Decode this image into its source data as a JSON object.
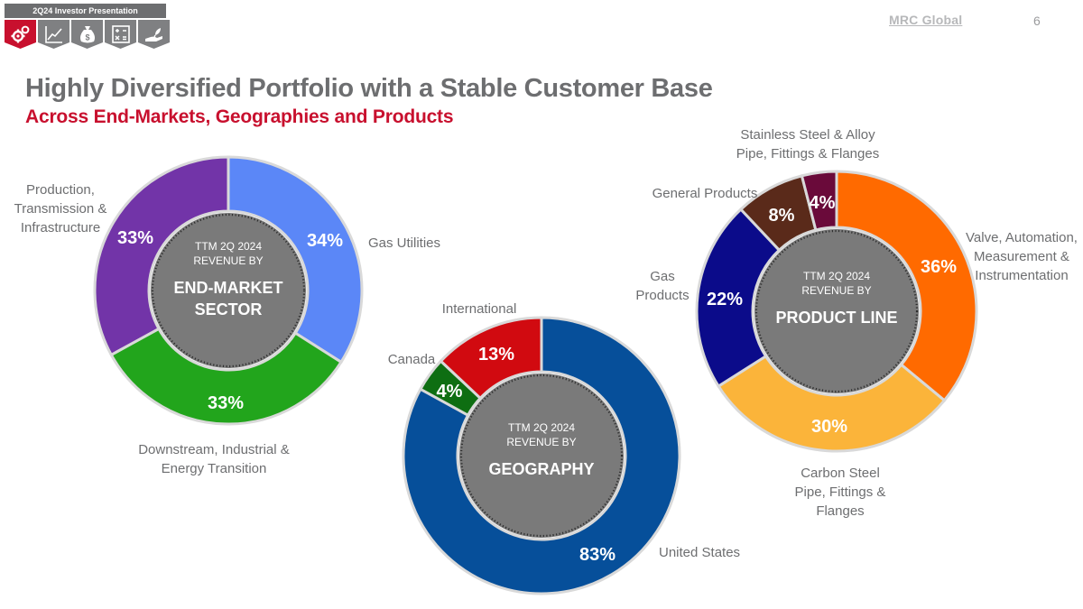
{
  "header": {
    "presentation_label": "2Q24  Investor Presentation",
    "brand": "MRC Global",
    "page_number": "6",
    "nav_icons": [
      "gears-icon",
      "growth-chart-icon",
      "money-bag-icon",
      "calculator-icon",
      "hand-plant-icon"
    ]
  },
  "title": "Highly Diversified Portfolio with a Stable Customer Base",
  "subtitle": "Across End-Markets, Geographies and Products",
  "colors": {
    "accent_red": "#c8102e",
    "title_gray": "#6d6e70",
    "center_gray": "#7a7a7a"
  },
  "chart_data": [
    {
      "type": "pie",
      "title": "TTM 2Q 2024 REVENUE BY END-MARKET SECTOR",
      "center_lines": [
        "TTM 2Q 2024",
        "REVENUE BY"
      ],
      "center_emphasis": [
        "END-MARKET",
        "SECTOR"
      ],
      "slices": [
        {
          "label": [
            "Gas Utilities"
          ],
          "value": 34,
          "display": "34%",
          "color": "#5b87f7"
        },
        {
          "label": [
            "Downstream, Industrial &",
            "Energy Transition"
          ],
          "value": 33,
          "display": "33%",
          "color": "#22a51c"
        },
        {
          "label": [
            "Production,",
            "Transmission &",
            "Infrastructure"
          ],
          "value": 33,
          "display": "33%",
          "color": "#7234a8"
        }
      ]
    },
    {
      "type": "pie",
      "title": "TTM 2Q 2024 REVENUE BY GEOGRAPHY",
      "center_lines": [
        "TTM 2Q 2024",
        "REVENUE BY"
      ],
      "center_emphasis": [
        "GEOGRAPHY"
      ],
      "slices": [
        {
          "label": [
            "United States"
          ],
          "value": 83,
          "display": "83%",
          "color": "#064f9a"
        },
        {
          "label": [
            "Canada"
          ],
          "value": 4,
          "display": "4%",
          "color": "#0e6e12"
        },
        {
          "label": [
            "International"
          ],
          "value": 13,
          "display": "13%",
          "color": "#d10a10"
        }
      ]
    },
    {
      "type": "pie",
      "title": "TTM 2Q 2024 REVENUE BY PRODUCT LINE",
      "center_lines": [
        "TTM 2Q 2024",
        "REVENUE BY"
      ],
      "center_emphasis": [
        "PRODUCT LINE"
      ],
      "slices": [
        {
          "label": [
            "Valve, Automation,",
            "Measurement &",
            "Instrumentation"
          ],
          "value": 36,
          "display": "36%",
          "color": "#ff6a00"
        },
        {
          "label": [
            "Carbon Steel",
            "Pipe, Fittings &",
            "Flanges"
          ],
          "value": 30,
          "display": "30%",
          "color": "#fbb43a"
        },
        {
          "label": [
            "Gas",
            "Products"
          ],
          "value": 22,
          "display": "22%",
          "color": "#0b0b8a"
        },
        {
          "label": [
            "General Products"
          ],
          "value": 8,
          "display": "8%",
          "color": "#5a2a1a"
        },
        {
          "label": [
            "Stainless Steel & Alloy",
            "Pipe, Fittings & Flanges"
          ],
          "value": 4,
          "display": "4%",
          "color": "#6a0a3a"
        }
      ]
    }
  ]
}
